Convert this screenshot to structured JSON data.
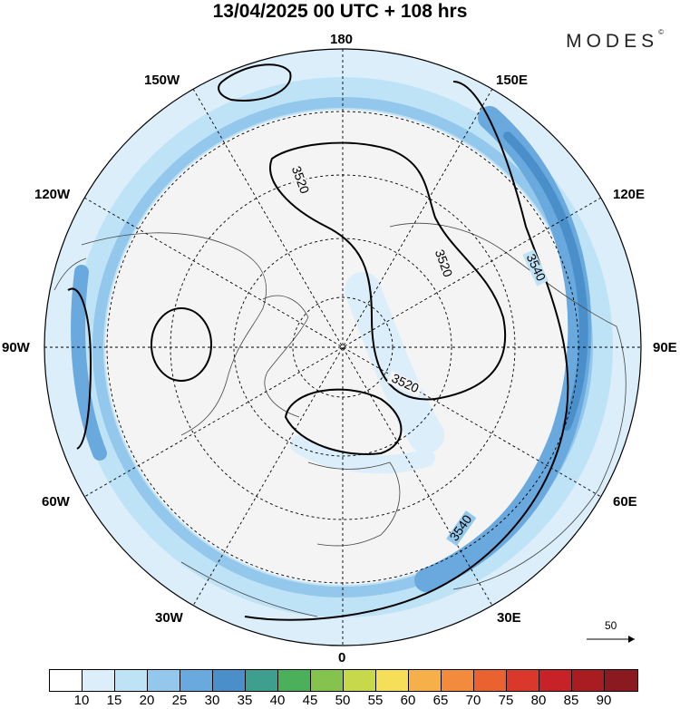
{
  "title": "13/04/2025  00 UTC  + 108 hrs",
  "brand": "MODES",
  "brand_mark": "©",
  "longitude_labels": {
    "top": "180",
    "top_right_150": "150E",
    "right_120": "120E",
    "right": "90E",
    "bottom_right_60": "60E",
    "bottom_right_30": "30E",
    "bottom": "0",
    "bottom_left_30": "30W",
    "left_60": "60W",
    "left": "90W",
    "left_120": "120W",
    "top_left_150": "150W"
  },
  "contour_labels": [
    "3520",
    "3520",
    "3520",
    "3540",
    "3540"
  ],
  "vector_scale": {
    "value": "50"
  },
  "colorbar": {
    "colors": [
      "#ffffff",
      "#dceefa",
      "#bfe3f6",
      "#93c8ec",
      "#6aa9de",
      "#4a8fca",
      "#3f9f8f",
      "#4ab05a",
      "#86c24e",
      "#c7d94b",
      "#f6df58",
      "#f5b04a",
      "#f28b3c",
      "#e9622f",
      "#d9382a",
      "#c62228",
      "#a81c22",
      "#8a1a1f"
    ],
    "tick_labels": [
      "10",
      "15",
      "20",
      "25",
      "30",
      "35",
      "40",
      "45",
      "50",
      "55",
      "60",
      "65",
      "70",
      "75",
      "80",
      "85",
      "90"
    ]
  }
}
